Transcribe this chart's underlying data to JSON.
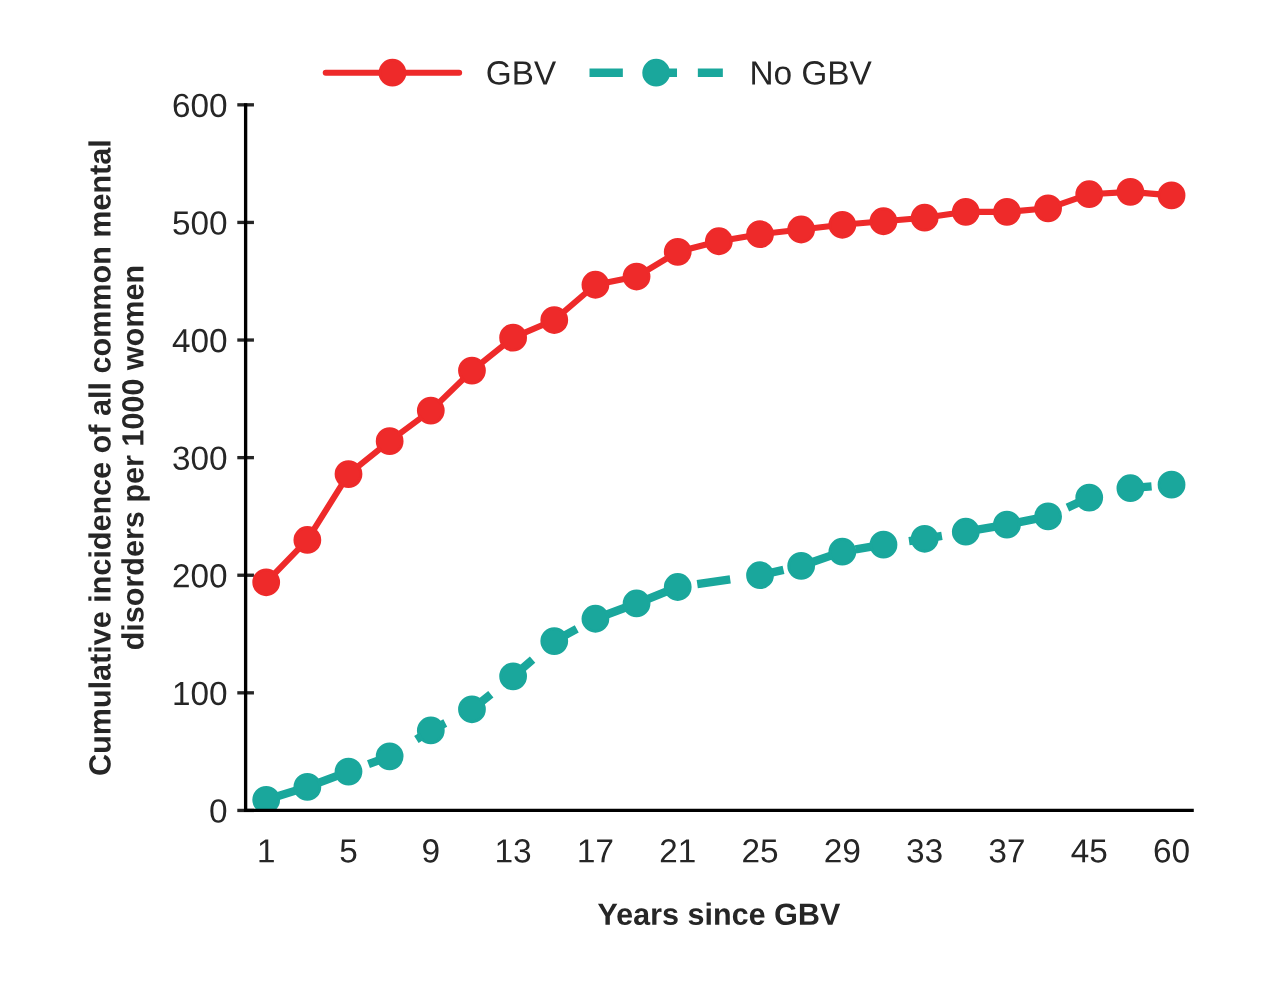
{
  "chart_data": {
    "type": "line",
    "xlabel": "Years since GBV",
    "ylabel": "Cumulative incidence of all common mental\ndisorders per 1000 women",
    "categories": [
      "1",
      null,
      "5",
      null,
      "9",
      null,
      "13",
      null,
      "17",
      null,
      "21",
      null,
      "25",
      null,
      "29",
      null,
      "33",
      null,
      "37",
      null,
      "45",
      null,
      "60"
    ],
    "series": [
      {
        "name": "GBV",
        "color": "#ee2a2a",
        "line_style": "solid",
        "values": [
          194,
          230,
          286,
          314,
          340,
          374,
          402,
          417,
          447,
          454,
          475,
          484,
          490,
          494,
          498,
          501,
          504,
          509,
          509,
          512,
          524,
          526,
          523
        ]
      },
      {
        "name": "No GBV",
        "color": "#1aa79c",
        "line_style": "dashed",
        "values": [
          9,
          20,
          33,
          46,
          68,
          86,
          114,
          144,
          163,
          176,
          190,
          null,
          200,
          208,
          220,
          226,
          231,
          237,
          243,
          250,
          266,
          274,
          277
        ]
      }
    ],
    "ylim": [
      0,
      600
    ],
    "yticks": [
      0,
      100,
      200,
      300,
      400,
      500,
      600
    ],
    "marker": "circle",
    "legend": "top left",
    "grid": false
  }
}
